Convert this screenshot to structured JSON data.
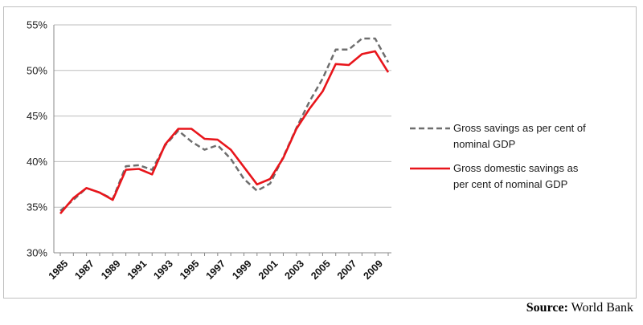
{
  "chart_data": {
    "type": "line",
    "title": "",
    "xlabel": "",
    "ylabel": "",
    "ylim": [
      0.3,
      0.55
    ],
    "y_ticks": [
      "30%",
      "35%",
      "40%",
      "45%",
      "50%",
      "55%"
    ],
    "x_tick_labels": [
      "1985",
      "1987",
      "1989",
      "1991",
      "1993",
      "1995",
      "1997",
      "1999",
      "2001",
      "2003",
      "2005",
      "2007",
      "2009"
    ],
    "x": [
      1985,
      1986,
      1987,
      1988,
      1989,
      1990,
      1991,
      1992,
      1993,
      1994,
      1995,
      1996,
      1997,
      1998,
      1999,
      2000,
      2001,
      2002,
      2003,
      2004,
      2005,
      2006,
      2007,
      2008,
      2009,
      2010
    ],
    "grid": true,
    "legend_position": "right",
    "series": [
      {
        "name": "Gross savings as per cent of nominal GDP",
        "color": "#6e6e6e",
        "dash": "dashed",
        "values": [
          0.346,
          0.358,
          0.371,
          0.366,
          0.359,
          0.395,
          0.396,
          0.391,
          0.418,
          0.434,
          0.422,
          0.413,
          0.418,
          0.403,
          0.381,
          0.368,
          0.376,
          0.405,
          0.437,
          0.466,
          0.491,
          0.523,
          0.523,
          0.535,
          0.535,
          0.509
        ]
      },
      {
        "name": "Gross domestic savings as per cent of nominal GDP",
        "color": "#e8151b",
        "dash": "solid",
        "values": [
          0.343,
          0.36,
          0.371,
          0.366,
          0.358,
          0.391,
          0.392,
          0.386,
          0.419,
          0.436,
          0.436,
          0.425,
          0.424,
          0.413,
          0.394,
          0.375,
          0.381,
          0.404,
          0.436,
          0.458,
          0.477,
          0.507,
          0.506,
          0.518,
          0.521,
          0.498
        ]
      }
    ],
    "legend": [
      {
        "line1": "Gross savings as per cent of",
        "line2": "nominal GDP"
      },
      {
        "line1": "Gross domestic savings as",
        "line2": "per cent of nominal GDP"
      }
    ]
  },
  "source": {
    "label": "Source:",
    "text": "World Bank"
  }
}
